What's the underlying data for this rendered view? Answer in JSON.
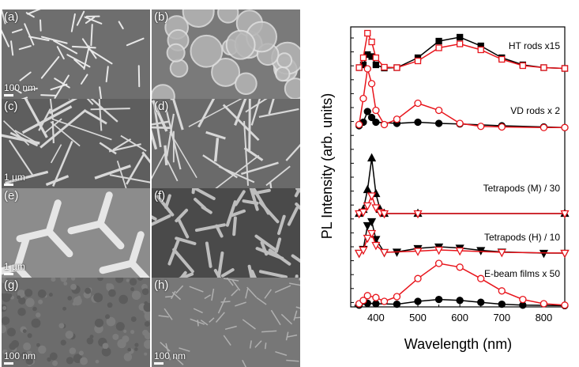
{
  "panels": [
    {
      "label": "(a)",
      "scale": "100 nm"
    },
    {
      "label": "(b)",
      "scale": ""
    },
    {
      "label": "(c)",
      "scale": "1 µm"
    },
    {
      "label": "(d)",
      "scale": ""
    },
    {
      "label": "(e)",
      "scale": "1 µm"
    },
    {
      "label": "(f)",
      "scale": ""
    },
    {
      "label": "(g)",
      "scale": "100 nm"
    },
    {
      "label": "(h)",
      "scale": "100 nm"
    }
  ],
  "chart_data": {
    "type": "line",
    "xlabel": "Wavelength (nm)",
    "ylabel": "PL Intensity (arb. units)",
    "xlim": [
      340,
      850
    ],
    "xticks": [
      400,
      500,
      600,
      700,
      800
    ],
    "grid": false,
    "colors": {
      "black": "#000000",
      "red": "#e8141b"
    },
    "groups": [
      {
        "label": "HT rods x15",
        "marker_black": "filled-square",
        "marker_red": "open-square",
        "black": [
          [
            360,
            0.05
          ],
          [
            370,
            0.12
          ],
          [
            380,
            0.38
          ],
          [
            390,
            0.33
          ],
          [
            400,
            0.12
          ],
          [
            420,
            0.04
          ],
          [
            450,
            0.05
          ],
          [
            500,
            0.3
          ],
          [
            550,
            0.72
          ],
          [
            600,
            0.82
          ],
          [
            650,
            0.6
          ],
          [
            700,
            0.3
          ],
          [
            750,
            0.12
          ],
          [
            800,
            0.05
          ],
          [
            850,
            0.03
          ]
        ],
        "red": [
          [
            360,
            0.05
          ],
          [
            370,
            0.3
          ],
          [
            380,
            0.92
          ],
          [
            390,
            0.7
          ],
          [
            400,
            0.3
          ],
          [
            420,
            0.06
          ],
          [
            450,
            0.05
          ],
          [
            500,
            0.22
          ],
          [
            550,
            0.55
          ],
          [
            600,
            0.65
          ],
          [
            650,
            0.5
          ],
          [
            700,
            0.26
          ],
          [
            750,
            0.1
          ],
          [
            800,
            0.05
          ],
          [
            850,
            0.03
          ]
        ]
      },
      {
        "label": "VD rods x 2",
        "marker_black": "filled-circle",
        "marker_red": "open-circle",
        "black": [
          [
            360,
            0.04
          ],
          [
            370,
            0.1
          ],
          [
            380,
            0.28
          ],
          [
            390,
            0.18
          ],
          [
            400,
            0.1
          ],
          [
            450,
            0.08
          ],
          [
            500,
            0.1
          ],
          [
            550,
            0.08
          ],
          [
            600,
            0.07
          ],
          [
            700,
            0.04
          ],
          [
            800,
            0.02
          ],
          [
            850,
            0.01
          ]
        ],
        "red": [
          [
            360,
            0.06
          ],
          [
            370,
            0.5
          ],
          [
            380,
            1.0
          ],
          [
            390,
            0.75
          ],
          [
            400,
            0.3
          ],
          [
            420,
            0.06
          ],
          [
            450,
            0.15
          ],
          [
            500,
            0.42
          ],
          [
            550,
            0.3
          ],
          [
            600,
            0.08
          ],
          [
            650,
            0.03
          ],
          [
            700,
            0.02
          ],
          [
            800,
            0.01
          ],
          [
            850,
            0.01
          ]
        ]
      },
      {
        "label": "Tetrapods (M) / 30",
        "marker_black": "filled-triangle-up",
        "marker_red": "open-triangle-down",
        "black": [
          [
            360,
            0.0
          ],
          [
            370,
            0.1
          ],
          [
            380,
            0.6
          ],
          [
            390,
            1.4
          ],
          [
            400,
            0.5
          ],
          [
            410,
            0.1
          ],
          [
            420,
            0.0
          ],
          [
            500,
            0.0
          ],
          [
            850,
            0.0
          ]
        ],
        "red": [
          [
            360,
            0.0
          ],
          [
            370,
            0.04
          ],
          [
            380,
            0.2
          ],
          [
            390,
            0.45
          ],
          [
            400,
            0.15
          ],
          [
            410,
            0.03
          ],
          [
            420,
            0.0
          ],
          [
            500,
            0.0
          ],
          [
            850,
            0.0
          ]
        ]
      },
      {
        "label": "Tetrapods (H) / 10",
        "marker_black": "filled-triangle-down",
        "marker_red": "open-triangle-down",
        "black": [
          [
            360,
            0.0
          ],
          [
            370,
            0.1
          ],
          [
            380,
            0.7
          ],
          [
            390,
            0.8
          ],
          [
            400,
            0.35
          ],
          [
            420,
            0.02
          ],
          [
            450,
            0.03
          ],
          [
            500,
            0.12
          ],
          [
            550,
            0.16
          ],
          [
            600,
            0.13
          ],
          [
            650,
            0.07
          ],
          [
            700,
            0.03
          ],
          [
            800,
            0.0
          ],
          [
            850,
            0.0
          ]
        ],
        "red": [
          [
            360,
            0.0
          ],
          [
            370,
            0.08
          ],
          [
            380,
            0.38
          ],
          [
            390,
            0.5
          ],
          [
            400,
            0.2
          ],
          [
            420,
            0.02
          ],
          [
            500,
            0.05
          ],
          [
            550,
            0.08
          ],
          [
            600,
            0.06
          ],
          [
            700,
            0.02
          ],
          [
            850,
            0.0
          ]
        ]
      },
      {
        "label": "E-beam films x 50",
        "marker_black": "filled-circle",
        "marker_red": "open-circle",
        "black": [
          [
            360,
            0.02
          ],
          [
            380,
            0.06
          ],
          [
            400,
            0.05
          ],
          [
            450,
            0.04
          ],
          [
            500,
            0.1
          ],
          [
            550,
            0.14
          ],
          [
            600,
            0.12
          ],
          [
            650,
            0.08
          ],
          [
            700,
            0.04
          ],
          [
            750,
            0.02
          ],
          [
            850,
            0.01
          ]
        ],
        "red": [
          [
            360,
            0.05
          ],
          [
            370,
            0.12
          ],
          [
            380,
            0.22
          ],
          [
            400,
            0.18
          ],
          [
            420,
            0.1
          ],
          [
            450,
            0.2
          ],
          [
            500,
            0.58
          ],
          [
            550,
            0.9
          ],
          [
            600,
            0.82
          ],
          [
            650,
            0.58
          ],
          [
            700,
            0.32
          ],
          [
            750,
            0.14
          ],
          [
            800,
            0.05
          ],
          [
            850,
            0.02
          ]
        ]
      }
    ]
  }
}
